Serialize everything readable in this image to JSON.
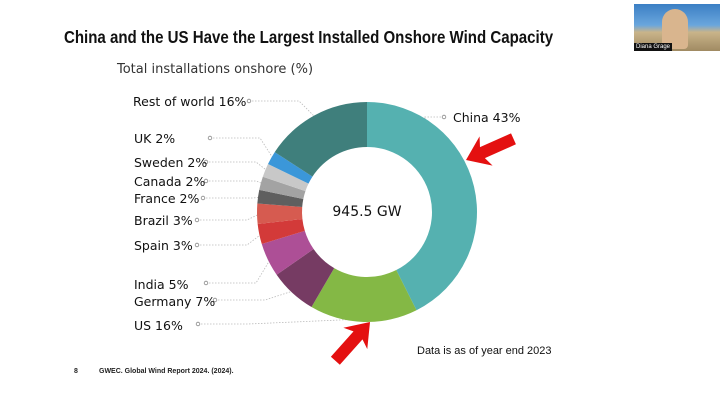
{
  "slide": {
    "title": "China and the US Have the Largest Installed Onshore Wind Capacity",
    "subtitle": "Total installations onshore (%)",
    "note": "Data is as of year end 2023",
    "page_number": "8",
    "citation": "GWEC. Global Wind Report 2024. (2024)."
  },
  "video": {
    "participant_name": "Diana Grage"
  },
  "chart_data": {
    "type": "pie",
    "variant": "donut",
    "center_label": "945.5 GW",
    "unit": "%",
    "slices": [
      {
        "label": "China 43%",
        "name": "China",
        "value": 43,
        "color": "#55b1b0"
      },
      {
        "label": "US 16%",
        "name": "US",
        "value": 16,
        "color": "#84b845"
      },
      {
        "label": "Germany 7%",
        "name": "Germany",
        "value": 7,
        "color": "#763b63"
      },
      {
        "label": "India 5%",
        "name": "India",
        "value": 5,
        "color": "#ad4f96"
      },
      {
        "label": "Spain 3%",
        "name": "Spain",
        "value": 3,
        "color": "#d33a39"
      },
      {
        "label": "Brazil 3%",
        "name": "Brazil",
        "value": 3,
        "color": "#d65b50"
      },
      {
        "label": "France 2%",
        "name": "France",
        "value": 2,
        "color": "#5f5f5f"
      },
      {
        "label": "Canada 2%",
        "name": "Canada",
        "value": 2,
        "color": "#a3a3a3"
      },
      {
        "label": "Sweden 2%",
        "name": "Sweden",
        "value": 2,
        "color": "#c8c8c8"
      },
      {
        "label": "UK 2%",
        "name": "UK",
        "value": 2,
        "color": "#3b97d9"
      },
      {
        "label": "Rest of world 16%",
        "name": "Rest of world",
        "value": 16,
        "color": "#3f7f7c"
      }
    ],
    "annotations": [
      "red arrow pointing to China",
      "red arrow pointing to US"
    ]
  }
}
